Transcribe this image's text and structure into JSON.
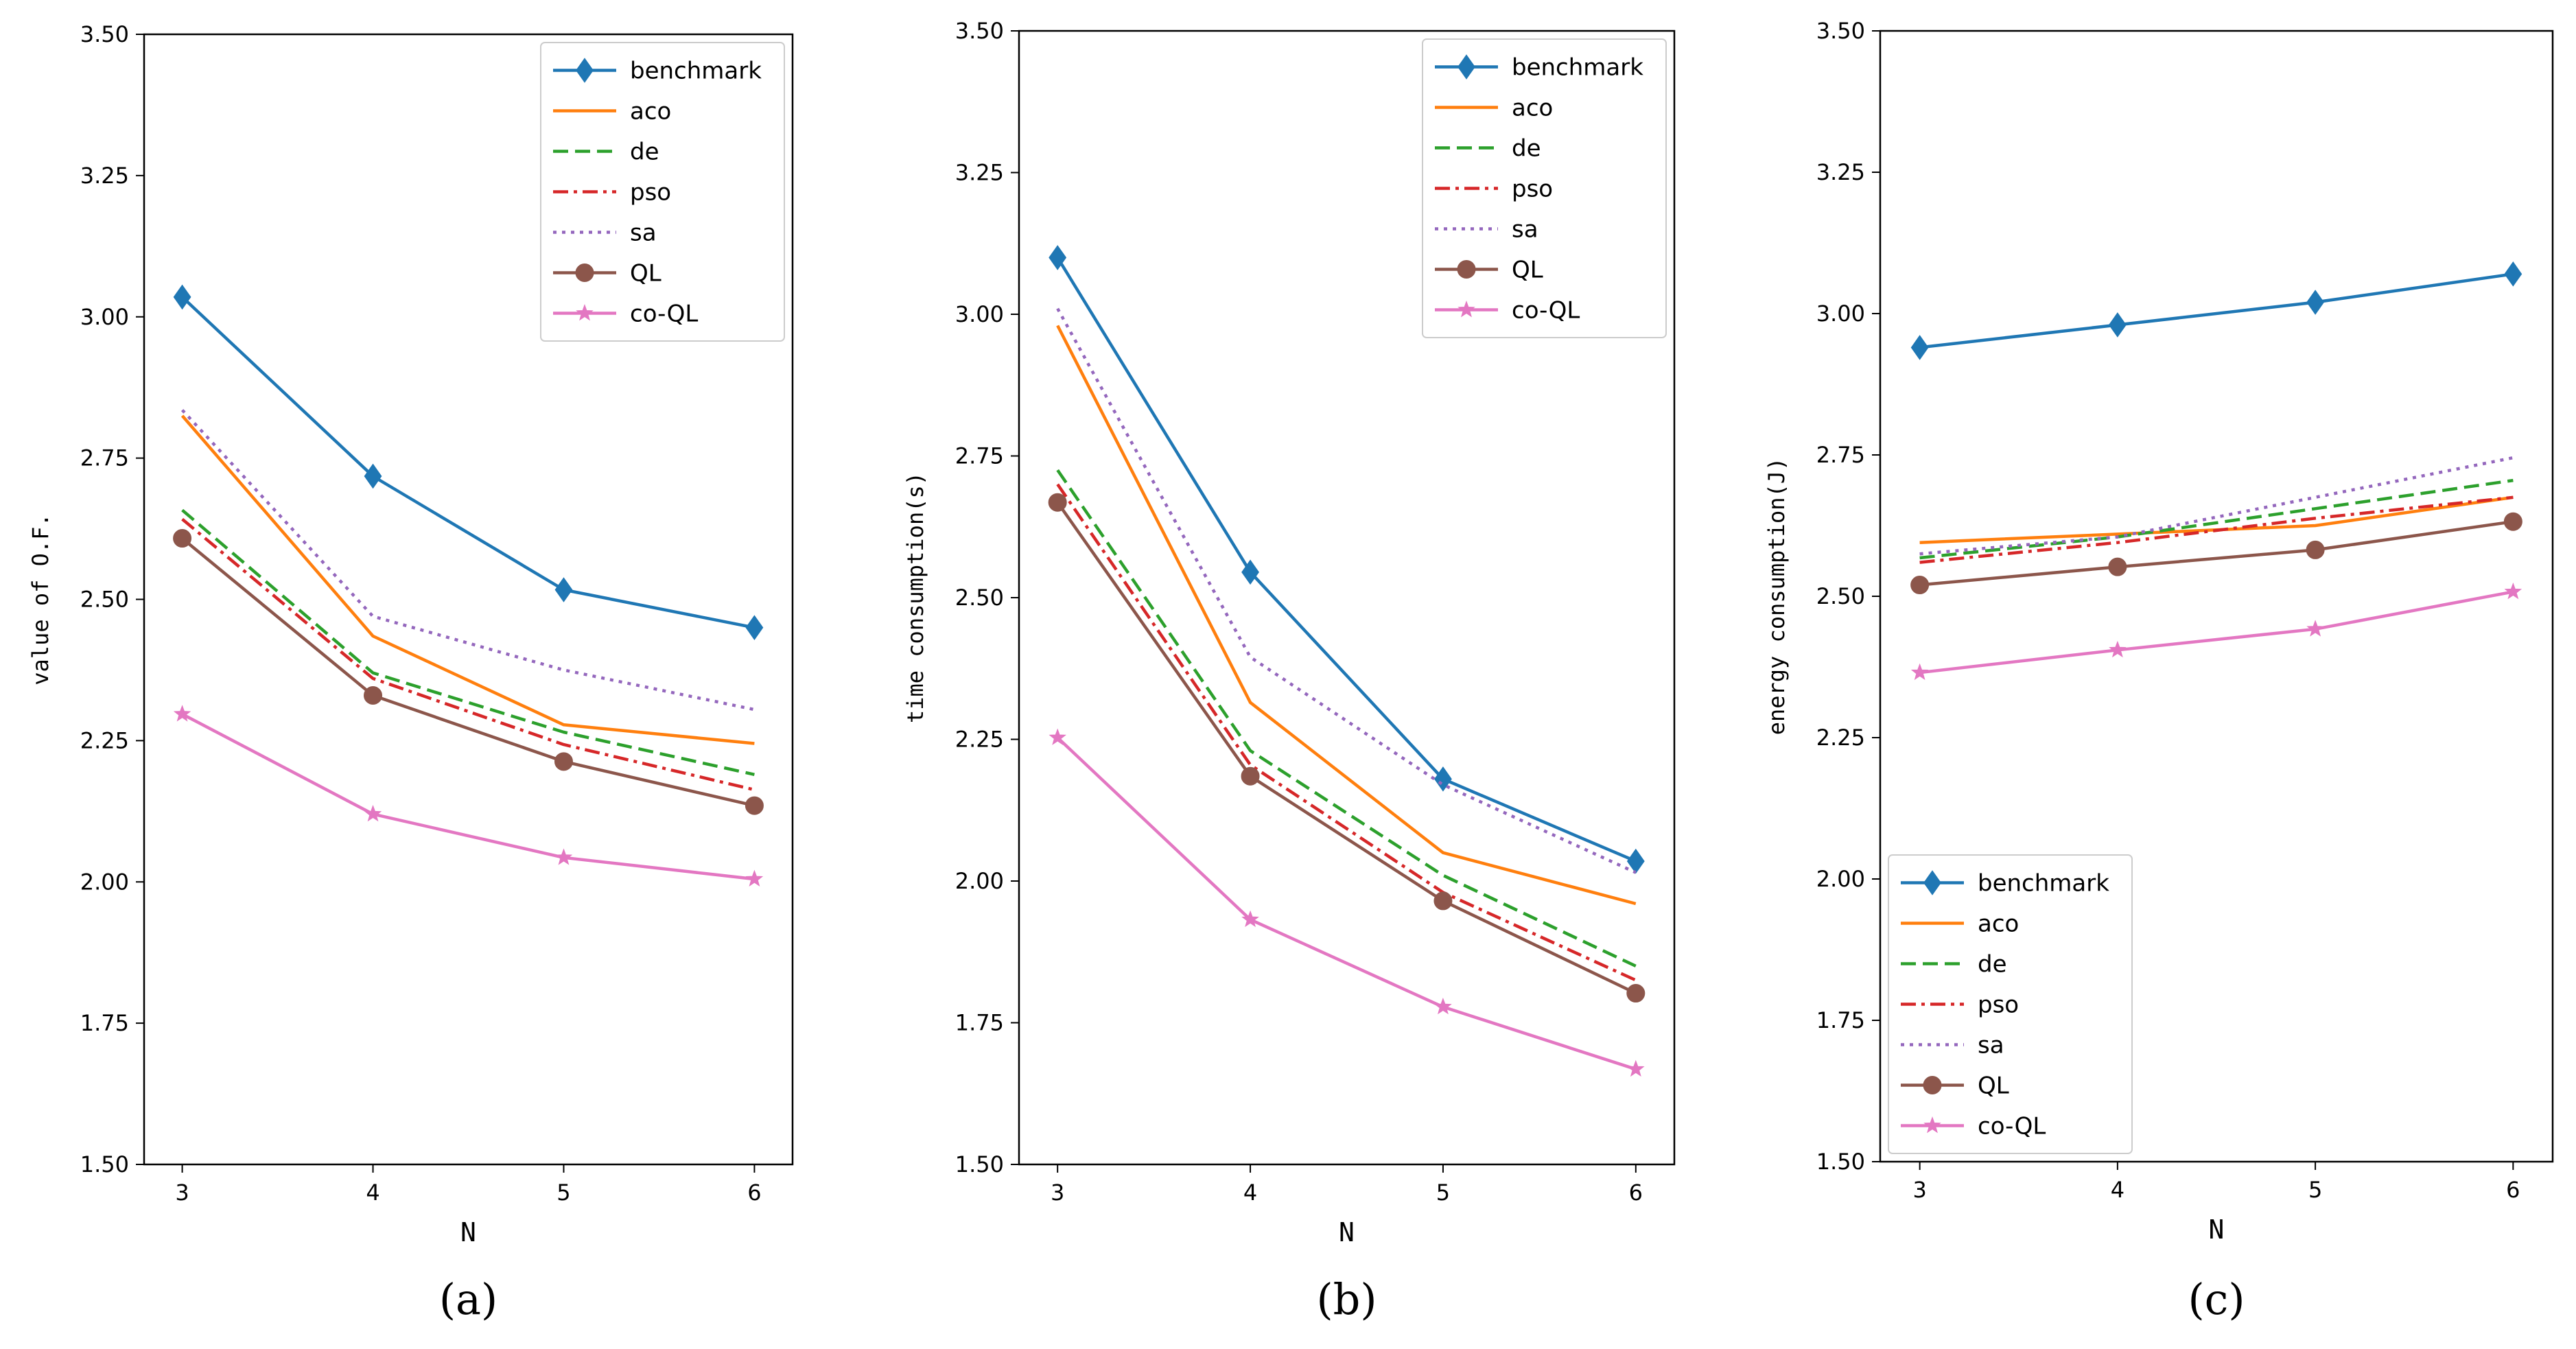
{
  "chart_data": [
    {
      "type": "line",
      "panel_label": "(a)",
      "xlabel": "N",
      "ylabel": "value of O.F.",
      "x": [
        3,
        4,
        5,
        6
      ],
      "xticks": [
        "3",
        "4",
        "5",
        "6"
      ],
      "ylim": [
        1.5,
        3.5
      ],
      "yticks": [
        "1.50",
        "1.75",
        "2.00",
        "2.25",
        "2.50",
        "2.75",
        "3.00",
        "3.25",
        "3.50"
      ],
      "legend_position": "top-right",
      "series": [
        {
          "name": "benchmark",
          "color": "#1f77b4",
          "dash": "solid",
          "marker": "diamond",
          "values": [
            3.035,
            2.718,
            2.517,
            2.45
          ]
        },
        {
          "name": "aco",
          "color": "#ff7f0e",
          "dash": "solid",
          "marker": "none",
          "values": [
            2.825,
            2.435,
            2.278,
            2.245
          ]
        },
        {
          "name": "de",
          "color": "#2ca02c",
          "dash": "dashed",
          "marker": "none",
          "values": [
            2.658,
            2.37,
            2.265,
            2.19
          ]
        },
        {
          "name": "pso",
          "color": "#d62728",
          "dash": "dashdot",
          "marker": "none",
          "values": [
            2.642,
            2.36,
            2.243,
            2.163
          ]
        },
        {
          "name": "sa",
          "color": "#9467bd",
          "dash": "dotted",
          "marker": "none",
          "values": [
            2.835,
            2.47,
            2.375,
            2.305
          ]
        },
        {
          "name": "QL",
          "color": "#8c564b",
          "dash": "solid",
          "marker": "circle",
          "values": [
            2.608,
            2.33,
            2.213,
            2.135
          ]
        },
        {
          "name": "co-QL",
          "color": "#e377c2",
          "dash": "solid",
          "marker": "star",
          "values": [
            2.297,
            2.12,
            2.043,
            2.005
          ]
        }
      ]
    },
    {
      "type": "line",
      "panel_label": "(b)",
      "xlabel": "N",
      "ylabel": "time consumption(s)",
      "x": [
        3,
        4,
        5,
        6
      ],
      "xticks": [
        "3",
        "4",
        "5",
        "6"
      ],
      "ylim": [
        1.5,
        3.5
      ],
      "yticks": [
        "1.50",
        "1.75",
        "2.00",
        "2.25",
        "2.50",
        "2.75",
        "3.00",
        "3.25",
        "3.50"
      ],
      "legend_position": "top-right",
      "series": [
        {
          "name": "benchmark",
          "color": "#1f77b4",
          "dash": "solid",
          "marker": "diamond",
          "values": [
            3.1,
            2.545,
            2.18,
            2.035
          ]
        },
        {
          "name": "aco",
          "color": "#ff7f0e",
          "dash": "solid",
          "marker": "none",
          "values": [
            2.98,
            2.315,
            2.05,
            1.96
          ]
        },
        {
          "name": "de",
          "color": "#2ca02c",
          "dash": "dashed",
          "marker": "none",
          "values": [
            2.725,
            2.23,
            2.01,
            1.85
          ]
        },
        {
          "name": "pso",
          "color": "#d62728",
          "dash": "dashdot",
          "marker": "none",
          "values": [
            2.7,
            2.205,
            1.98,
            1.825
          ]
        },
        {
          "name": "sa",
          "color": "#9467bd",
          "dash": "dotted",
          "marker": "none",
          "values": [
            3.01,
            2.395,
            2.17,
            2.015
          ]
        },
        {
          "name": "QL",
          "color": "#8c564b",
          "dash": "solid",
          "marker": "circle",
          "values": [
            2.668,
            2.185,
            1.965,
            1.802
          ]
        },
        {
          "name": "co-QL",
          "color": "#e377c2",
          "dash": "solid",
          "marker": "star",
          "values": [
            2.253,
            1.932,
            1.778,
            1.668
          ]
        }
      ]
    },
    {
      "type": "line",
      "panel_label": "(c)",
      "xlabel": "N",
      "ylabel": "energy consumption(J)",
      "x": [
        3,
        4,
        5,
        6
      ],
      "xticks": [
        "3",
        "4",
        "5",
        "6"
      ],
      "ylim": [
        1.5,
        3.5
      ],
      "yticks": [
        "1.50",
        "1.75",
        "2.00",
        "2.25",
        "2.50",
        "2.75",
        "3.00",
        "3.25",
        "3.50"
      ],
      "legend_position": "bottom-left",
      "series": [
        {
          "name": "benchmark",
          "color": "#1f77b4",
          "dash": "solid",
          "marker": "diamond",
          "values": [
            2.94,
            2.98,
            3.02,
            3.07
          ]
        },
        {
          "name": "aco",
          "color": "#ff7f0e",
          "dash": "solid",
          "marker": "none",
          "values": [
            2.595,
            2.61,
            2.625,
            2.675
          ]
        },
        {
          "name": "de",
          "color": "#2ca02c",
          "dash": "dashed",
          "marker": "none",
          "values": [
            2.568,
            2.605,
            2.655,
            2.705
          ]
        },
        {
          "name": "pso",
          "color": "#d62728",
          "dash": "dashdot",
          "marker": "none",
          "values": [
            2.56,
            2.595,
            2.638,
            2.675
          ]
        },
        {
          "name": "sa",
          "color": "#9467bd",
          "dash": "dotted",
          "marker": "none",
          "values": [
            2.575,
            2.605,
            2.675,
            2.745
          ]
        },
        {
          "name": "QL",
          "color": "#8c564b",
          "dash": "solid",
          "marker": "circle",
          "values": [
            2.52,
            2.552,
            2.582,
            2.632
          ]
        },
        {
          "name": "co-QL",
          "color": "#e377c2",
          "dash": "solid",
          "marker": "star",
          "values": [
            2.365,
            2.405,
            2.442,
            2.508
          ]
        }
      ]
    }
  ]
}
